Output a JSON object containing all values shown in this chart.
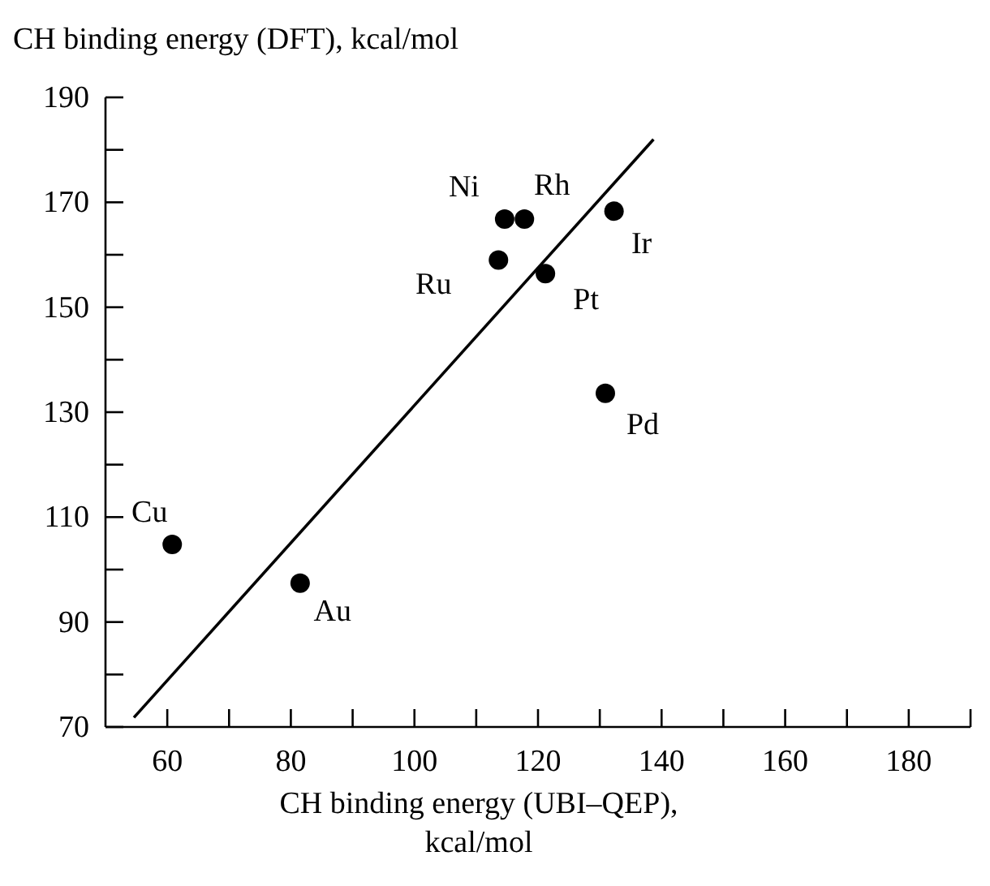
{
  "chart_data": {
    "type": "scatter",
    "ylabel": "CH binding energy (DFT), kcal/mol",
    "xlabel": "CH binding energy (UBI–QEP), kcal/mol",
    "xlim": [
      50,
      190
    ],
    "ylim": [
      70,
      190
    ],
    "xticks": [
      60,
      {
        "value": 70,
        "label": null
      },
      80,
      {
        "value": 90,
        "label": null
      },
      100,
      {
        "value": 110,
        "label": null
      },
      120,
      {
        "value": 130,
        "label": null
      },
      140,
      {
        "value": 150,
        "label": null
      },
      160,
      {
        "value": 170,
        "label": null
      },
      180,
      {
        "value": 190,
        "label": null
      }
    ],
    "yticks": [
      70,
      {
        "value": 80,
        "label": null
      },
      90,
      {
        "value": 100,
        "label": null
      },
      110,
      {
        "value": 120,
        "label": null
      },
      130,
      {
        "value": 140,
        "label": null
      },
      150,
      {
        "value": 160,
        "label": null
      },
      170,
      {
        "value": 180,
        "label": null
      },
      190
    ],
    "grid": false,
    "legend": false,
    "series": [
      {
        "color": "#000000",
        "marker": "circle",
        "x": [
          60.8,
          81.5,
          114.6,
          117.8,
          113.6,
          121.2,
          132.3,
          130.9
        ],
        "values": [
          104.8,
          97.4,
          166.8,
          166.8,
          159,
          156.4,
          168.3,
          133.6
        ]
      },
      {
        "type": "line",
        "color": "#000000",
        "x": [
          54.6,
          138.7
        ],
        "values": [
          71.8,
          182.0
        ],
        "line_style": "solid",
        "marker": "none"
      }
    ],
    "annotations": [
      {
        "text": "Cu",
        "x": 60.8,
        "y": 104.8
      },
      {
        "text": "Au",
        "x": 81.5,
        "y": 97.4
      },
      {
        "text": "Ni",
        "x": 114.6,
        "y": 166.8
      },
      {
        "text": "Rh",
        "x": 117.8,
        "y": 166.8
      },
      {
        "text": "Ru",
        "x": 113.6,
        "y": 159
      },
      {
        "text": "Pt",
        "x": 121.2,
        "y": 156.4
      },
      {
        "text": "Ir",
        "x": 132.3,
        "y": 168.3
      },
      {
        "text": "Pd",
        "x": 130.9,
        "y": 133.6
      }
    ]
  }
}
